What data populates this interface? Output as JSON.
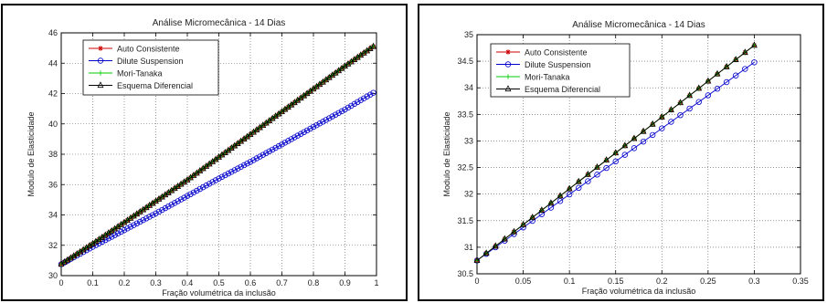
{
  "chart_data": [
    {
      "type": "line",
      "title": "Análise Micromecânica - 14 Dias",
      "xlabel": "Fração volumétrica da inclusão",
      "ylabel": "Modulo de Elasticidade",
      "xlim": [
        0,
        1
      ],
      "ylim": [
        30,
        46
      ],
      "xticks": [
        0,
        0.1,
        0.2,
        0.3,
        0.4,
        0.5,
        0.6,
        0.7,
        0.8,
        0.9,
        1
      ],
      "yticks": [
        30,
        32,
        34,
        36,
        38,
        40,
        42,
        44,
        46
      ],
      "xtick_labels": [
        "0",
        "0.1",
        "0.2",
        "0.3",
        "0.4",
        "0.5",
        "0.6",
        "0.7",
        "0.8",
        "0.9",
        "1"
      ],
      "ytick_labels": [
        "30",
        "32",
        "34",
        "36",
        "38",
        "40",
        "42",
        "44",
        "46"
      ],
      "grid": true,
      "legend_position": "top-left",
      "series": [
        {
          "name": "Auto Consistente",
          "color": "#cc0000",
          "marker": "star",
          "x": [
            0,
            0.1,
            0.2,
            0.3,
            0.4,
            0.5,
            0.6,
            0.7,
            0.8,
            0.9,
            0.99
          ],
          "y": [
            30.75,
            32.1,
            33.5,
            34.9,
            36.3,
            37.8,
            39.3,
            40.8,
            42.3,
            43.8,
            45.1
          ]
        },
        {
          "name": "Dilute Suspension",
          "color": "#0000cc",
          "marker": "circle",
          "x": [
            0,
            0.1,
            0.2,
            0.3,
            0.4,
            0.5,
            0.6,
            0.7,
            0.8,
            0.9,
            0.99
          ],
          "y": [
            30.75,
            31.9,
            33.0,
            34.1,
            35.25,
            36.4,
            37.5,
            38.65,
            39.8,
            40.95,
            42.05
          ]
        },
        {
          "name": "Mori-Tanaka",
          "color": "#00cc00",
          "marker": "plus",
          "x": [
            0,
            0.1,
            0.2,
            0.3,
            0.4,
            0.5,
            0.6,
            0.7,
            0.8,
            0.9,
            0.99
          ],
          "y": [
            30.75,
            32.1,
            33.5,
            34.9,
            36.3,
            37.8,
            39.3,
            40.8,
            42.3,
            43.8,
            45.1
          ]
        },
        {
          "name": "Esquema Diferencial",
          "color": "#000000",
          "marker": "triangle",
          "x": [
            0,
            0.1,
            0.2,
            0.3,
            0.4,
            0.5,
            0.6,
            0.7,
            0.8,
            0.9,
            0.99
          ],
          "y": [
            30.75,
            32.1,
            33.5,
            34.9,
            36.3,
            37.8,
            39.3,
            40.8,
            42.3,
            43.8,
            45.1
          ]
        }
      ]
    },
    {
      "type": "line",
      "title": "Análise Micromecânica - 14 Dias",
      "xlabel": "Fração volumétrica da inclusão",
      "ylabel": "Modulo de Elasticidade",
      "xlim": [
        0,
        0.35
      ],
      "ylim": [
        30.5,
        35
      ],
      "xticks": [
        0,
        0.05,
        0.1,
        0.15,
        0.2,
        0.25,
        0.3,
        0.35
      ],
      "yticks": [
        30.5,
        31,
        31.5,
        32,
        32.5,
        33,
        33.5,
        34,
        34.5,
        35
      ],
      "xtick_labels": [
        "0",
        "0.05",
        "0.1",
        "0.15",
        "0.2",
        "0.25",
        "0.3",
        "0.35"
      ],
      "ytick_labels": [
        "30.5",
        "31",
        "31.5",
        "32",
        "32.5",
        "33",
        "33.5",
        "34",
        "34.5",
        "35"
      ],
      "grid": true,
      "legend_position": "top-left",
      "series": [
        {
          "name": "Auto Consistente",
          "color": "#cc0000",
          "marker": "star",
          "x": [
            0,
            0.3
          ],
          "y": [
            30.75,
            34.8
          ]
        },
        {
          "name": "Dilute Suspension",
          "color": "#0000cc",
          "marker": "circle",
          "x": [
            0,
            0.3
          ],
          "y": [
            30.75,
            34.48
          ]
        },
        {
          "name": "Mori-Tanaka",
          "color": "#00cc00",
          "marker": "plus",
          "x": [
            0,
            0.3
          ],
          "y": [
            30.75,
            34.8
          ]
        },
        {
          "name": "Esquema Diferencial",
          "color": "#000000",
          "marker": "triangle",
          "x": [
            0,
            0.3
          ],
          "y": [
            30.75,
            34.8
          ]
        }
      ]
    }
  ]
}
